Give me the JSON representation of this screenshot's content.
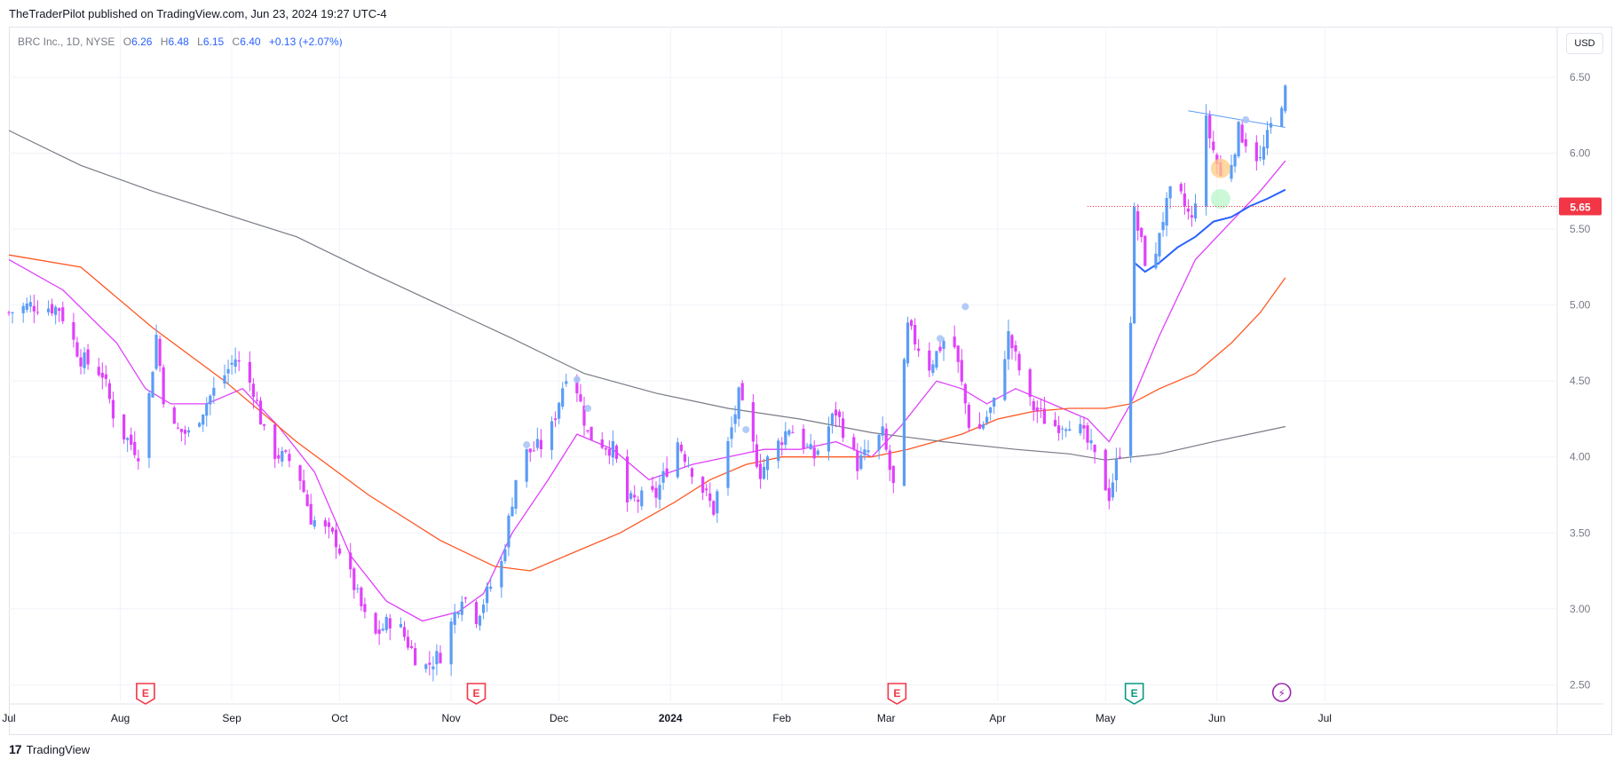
{
  "publisher": {
    "text": "TheTraderPilot published on TradingView.com, Jun 23, 2024 19:27 UTC-4"
  },
  "legend": {
    "symbol": "BRC Inc., 1D, NYSE",
    "o_label": "O",
    "o": "6.26",
    "h_label": "H",
    "h": "6.48",
    "l_label": "L",
    "l": "6.15",
    "c_label": "C",
    "c": "6.40",
    "change": "+0.13 (+2.07%)"
  },
  "currency_button": {
    "label": "USD"
  },
  "price_tag": {
    "value": "5.65",
    "price": 5.65,
    "color": "#f23645"
  },
  "footer": {
    "brand": "TradingView",
    "logo": "17"
  },
  "colors": {
    "up": "#5b9cf6",
    "down": "#e040fb",
    "sma10": "#e040fb",
    "sma50": "#ff5722",
    "sma200": "#787b86",
    "vwap": "#2962ff",
    "earnings": "#f23645",
    "earnings_future": "#089981",
    "dividend": "#9c27b0"
  },
  "chart_data": {
    "type": "candlestick",
    "title": "",
    "ylim": [
      2.42,
      6.6
    ],
    "y_ticks": [
      2.5,
      3.0,
      3.5,
      4.0,
      4.5,
      5.0,
      5.5,
      6.0,
      6.5
    ],
    "y_tick_labels": [
      "2.50",
      "3.00",
      "3.50",
      "4.00",
      "4.50",
      "5.00",
      "5.50",
      "6.00",
      "6.50"
    ],
    "x_ticks": [
      {
        "label": "Jul",
        "day": 0
      },
      {
        "label": "Aug",
        "day": 31
      },
      {
        "label": "Sep",
        "day": 62
      },
      {
        "label": "Oct",
        "day": 92
      },
      {
        "label": "Nov",
        "day": 123
      },
      {
        "label": "Dec",
        "day": 153
      },
      {
        "label": "2024",
        "day": 184
      },
      {
        "label": "Feb",
        "day": 215
      },
      {
        "label": "Mar",
        "day": 244
      },
      {
        "label": "Apr",
        "day": 275
      },
      {
        "label": "May",
        "day": 305
      },
      {
        "label": "Jun",
        "day": 336
      },
      {
        "label": "Jul",
        "day": 366
      }
    ],
    "anchors": [
      {
        "day": 0,
        "price": 4.95
      },
      {
        "day": 6,
        "price": 5.0
      },
      {
        "day": 14,
        "price": 4.98
      },
      {
        "day": 20,
        "price": 4.65
      },
      {
        "day": 26,
        "price": 4.55
      },
      {
        "day": 30,
        "price": 4.2
      },
      {
        "day": 37,
        "price": 4.0
      },
      {
        "day": 41,
        "price": 4.8
      },
      {
        "day": 44,
        "price": 4.2
      },
      {
        "day": 50,
        "price": 4.15
      },
      {
        "day": 56,
        "price": 4.4
      },
      {
        "day": 63,
        "price": 4.65
      },
      {
        "day": 68,
        "price": 4.45
      },
      {
        "day": 72,
        "price": 4.05
      },
      {
        "day": 80,
        "price": 3.95
      },
      {
        "day": 84,
        "price": 3.6
      },
      {
        "day": 91,
        "price": 3.45
      },
      {
        "day": 96,
        "price": 3.15
      },
      {
        "day": 101,
        "price": 2.8
      },
      {
        "day": 107,
        "price": 2.95
      },
      {
        "day": 115,
        "price": 2.6
      },
      {
        "day": 120,
        "price": 2.7
      },
      {
        "day": 126,
        "price": 3.1
      },
      {
        "day": 130,
        "price": 2.95
      },
      {
        "day": 137,
        "price": 3.3
      },
      {
        "day": 142,
        "price": 4.0
      },
      {
        "day": 150,
        "price": 4.1
      },
      {
        "day": 156,
        "price": 4.65
      },
      {
        "day": 161,
        "price": 4.15
      },
      {
        "day": 168,
        "price": 4.05
      },
      {
        "day": 172,
        "price": 3.7
      },
      {
        "day": 180,
        "price": 3.75
      },
      {
        "day": 186,
        "price": 4.1
      },
      {
        "day": 196,
        "price": 3.65
      },
      {
        "day": 203,
        "price": 4.4
      },
      {
        "day": 209,
        "price": 3.9
      },
      {
        "day": 217,
        "price": 4.2
      },
      {
        "day": 224,
        "price": 4.0
      },
      {
        "day": 230,
        "price": 4.3
      },
      {
        "day": 236,
        "price": 3.95
      },
      {
        "day": 243,
        "price": 4.15
      },
      {
        "day": 246,
        "price": 3.8
      },
      {
        "day": 250,
        "price": 4.85
      },
      {
        "day": 256,
        "price": 4.6
      },
      {
        "day": 262,
        "price": 4.85
      },
      {
        "day": 268,
        "price": 4.1
      },
      {
        "day": 274,
        "price": 4.35
      },
      {
        "day": 278,
        "price": 4.8
      },
      {
        "day": 284,
        "price": 4.35
      },
      {
        "day": 290,
        "price": 4.2
      },
      {
        "day": 296,
        "price": 4.25
      },
      {
        "day": 301,
        "price": 4.05
      },
      {
        "day": 306,
        "price": 3.75
      },
      {
        "day": 311,
        "price": 4.25
      },
      {
        "day": 313,
        "price": 5.6
      },
      {
        "day": 318,
        "price": 5.1
      },
      {
        "day": 320,
        "price": 5.5
      },
      {
        "day": 324,
        "price": 5.8
      },
      {
        "day": 329,
        "price": 5.55
      },
      {
        "day": 333,
        "price": 6.2
      },
      {
        "day": 338,
        "price": 5.75
      },
      {
        "day": 342,
        "price": 6.15
      },
      {
        "day": 348,
        "price": 5.95
      },
      {
        "day": 352,
        "price": 6.25
      },
      {
        "day": 355,
        "price": 6.4
      }
    ],
    "series": [
      {
        "name": "",
        "kind": "sma10",
        "color": "#e040fb",
        "points": [
          [
            0,
            5.3
          ],
          [
            15,
            5.1
          ],
          [
            30,
            4.75
          ],
          [
            38,
            4.45
          ],
          [
            45,
            4.35
          ],
          [
            55,
            4.35
          ],
          [
            65,
            4.45
          ],
          [
            75,
            4.2
          ],
          [
            85,
            3.9
          ],
          [
            95,
            3.35
          ],
          [
            105,
            3.05
          ],
          [
            115,
            2.92
          ],
          [
            125,
            2.98
          ],
          [
            132,
            3.1
          ],
          [
            140,
            3.5
          ],
          [
            150,
            3.85
          ],
          [
            158,
            4.15
          ],
          [
            168,
            4.05
          ],
          [
            178,
            3.85
          ],
          [
            190,
            3.95
          ],
          [
            200,
            4.0
          ],
          [
            210,
            4.05
          ],
          [
            220,
            4.05
          ],
          [
            230,
            4.1
          ],
          [
            240,
            4.0
          ],
          [
            248,
            4.2
          ],
          [
            258,
            4.5
          ],
          [
            265,
            4.45
          ],
          [
            272,
            4.35
          ],
          [
            280,
            4.45
          ],
          [
            290,
            4.35
          ],
          [
            300,
            4.25
          ],
          [
            306,
            4.1
          ],
          [
            312,
            4.35
          ],
          [
            320,
            4.8
          ],
          [
            330,
            5.3
          ],
          [
            340,
            5.55
          ],
          [
            348,
            5.75
          ],
          [
            355,
            5.95
          ]
        ]
      },
      {
        "name": "",
        "kind": "sma50",
        "color": "#ff5722",
        "points": [
          [
            0,
            5.33
          ],
          [
            20,
            5.25
          ],
          [
            40,
            4.85
          ],
          [
            60,
            4.5
          ],
          [
            80,
            4.1
          ],
          [
            100,
            3.75
          ],
          [
            120,
            3.45
          ],
          [
            135,
            3.28
          ],
          [
            145,
            3.25
          ],
          [
            155,
            3.35
          ],
          [
            170,
            3.5
          ],
          [
            185,
            3.7
          ],
          [
            195,
            3.85
          ],
          [
            205,
            3.95
          ],
          [
            215,
            4.0
          ],
          [
            225,
            4.0
          ],
          [
            240,
            4.0
          ],
          [
            250,
            4.05
          ],
          [
            265,
            4.15
          ],
          [
            275,
            4.25
          ],
          [
            285,
            4.3
          ],
          [
            295,
            4.32
          ],
          [
            305,
            4.32
          ],
          [
            312,
            4.35
          ],
          [
            320,
            4.45
          ],
          [
            330,
            4.55
          ],
          [
            340,
            4.75
          ],
          [
            348,
            4.95
          ],
          [
            355,
            5.18
          ]
        ]
      },
      {
        "name": "",
        "kind": "sma200",
        "color": "#787b86",
        "points": [
          [
            0,
            6.15
          ],
          [
            20,
            5.92
          ],
          [
            40,
            5.75
          ],
          [
            60,
            5.6
          ],
          [
            80,
            5.45
          ],
          [
            100,
            5.22
          ],
          [
            120,
            5.0
          ],
          [
            140,
            4.78
          ],
          [
            160,
            4.55
          ],
          [
            180,
            4.42
          ],
          [
            200,
            4.32
          ],
          [
            220,
            4.25
          ],
          [
            240,
            4.16
          ],
          [
            260,
            4.1
          ],
          [
            280,
            4.05
          ],
          [
            295,
            4.02
          ],
          [
            305,
            3.98
          ],
          [
            320,
            4.02
          ],
          [
            335,
            4.1
          ],
          [
            355,
            4.2
          ]
        ]
      },
      {
        "name": "",
        "kind": "vwap",
        "color": "#2962ff",
        "points": [
          [
            313,
            5.28
          ],
          [
            316,
            5.22
          ],
          [
            320,
            5.28
          ],
          [
            325,
            5.38
          ],
          [
            330,
            5.45
          ],
          [
            335,
            5.55
          ],
          [
            340,
            5.58
          ],
          [
            345,
            5.65
          ],
          [
            350,
            5.7
          ],
          [
            355,
            5.76
          ]
        ]
      }
    ],
    "trendline": [
      [
        328,
        6.28
      ],
      [
        355,
        6.17
      ]
    ],
    "events": [
      {
        "type": "earnings",
        "label": "E",
        "day": 38,
        "color": "#f23645"
      },
      {
        "type": "earnings",
        "label": "E",
        "day": 130,
        "color": "#f23645"
      },
      {
        "type": "earnings",
        "label": "E",
        "day": 247,
        "color": "#f23645"
      },
      {
        "type": "earnings",
        "label": "E",
        "day": 313,
        "color": "#089981"
      },
      {
        "type": "dividend",
        "label": "⚡",
        "day": 354,
        "color": "#9c27b0"
      }
    ],
    "markers": [
      {
        "day": 144,
        "price": 4.08,
        "color": "#aac7f5"
      },
      {
        "day": 158,
        "price": 4.51,
        "color": "#aac7f5"
      },
      {
        "day": 161,
        "price": 4.32,
        "color": "#aac7f5"
      },
      {
        "day": 205,
        "price": 4.18,
        "color": "#aac7f5"
      },
      {
        "day": 259,
        "price": 4.78,
        "color": "#aac7f5"
      },
      {
        "day": 266,
        "price": 4.99,
        "color": "#aac7f5"
      },
      {
        "day": 337,
        "price": 5.9,
        "color": "#ffcc80",
        "big": true
      },
      {
        "day": 337,
        "price": 5.7,
        "color": "#b9f6ca",
        "big": true
      },
      {
        "day": 344,
        "price": 6.22,
        "color": "#aac7f5"
      }
    ]
  }
}
